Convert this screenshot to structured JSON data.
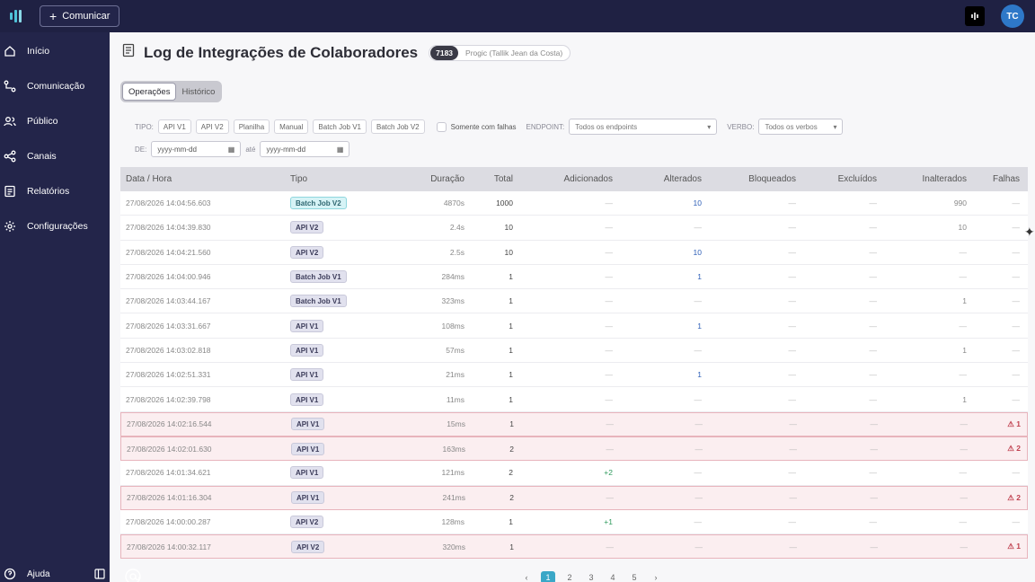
{
  "topbar": {
    "comunicar_label": "Comunicar",
    "avatar_initials": "TC"
  },
  "sidebar": {
    "items": [
      {
        "label": "Início",
        "icon": "home-icon"
      },
      {
        "label": "Comunicação",
        "icon": "flow-icon"
      },
      {
        "label": "Público",
        "icon": "users-icon"
      },
      {
        "label": "Canais",
        "icon": "share-icon"
      },
      {
        "label": "Relatórios",
        "icon": "report-icon"
      },
      {
        "label": "Configurações",
        "icon": "gear-icon"
      }
    ],
    "help_label": "Ajuda"
  },
  "header": {
    "title": "Log de Integrações de Colaboradores",
    "badge_count": "7183",
    "badge_text": "Progic (Tallik Jean da Costa)"
  },
  "tabs": [
    {
      "label": "Operações",
      "active": true
    },
    {
      "label": "Histórico",
      "active": false
    }
  ],
  "filters": {
    "tipo_label": "TIPO:",
    "tipo_chips": [
      "API V1",
      "API V2",
      "Planilha",
      "Manual",
      "Batch Job V1",
      "Batch Job V2"
    ],
    "only_failures_label": "Somente com falhas",
    "endpoint_label": "ENDPOINT:",
    "endpoint_value": "Todos os endpoints",
    "verbo_label": "VERBO:",
    "verbo_value": "Todos os verbos",
    "de_label": "DE:",
    "ate_label": "até",
    "date_placeholder": "yyyy-mm-dd"
  },
  "table": {
    "headers": [
      "Data / Hora",
      "Tipo",
      "Duração",
      "Total",
      "Adicionados",
      "Alterados",
      "Bloqueados",
      "Excluídos",
      "Inalterados",
      "Falhas"
    ],
    "rows": [
      {
        "date": "27/08/2026 14:04:56.603",
        "tipo": "Batch Job V2",
        "dur": "4870s",
        "total": "1000",
        "add": "—",
        "alt": "10",
        "blq": "—",
        "exc": "—",
        "ina": "990",
        "fal": "—",
        "err": false
      },
      {
        "date": "27/08/2026 14:04:39.830",
        "tipo": "API V2",
        "dur": "2.4s",
        "total": "10",
        "add": "—",
        "alt": "—",
        "blq": "—",
        "exc": "—",
        "ina": "10",
        "fal": "—",
        "err": false
      },
      {
        "date": "27/08/2026 14:04:21.560",
        "tipo": "API V2",
        "dur": "2.5s",
        "total": "10",
        "add": "—",
        "alt": "10",
        "blq": "—",
        "exc": "—",
        "ina": "—",
        "fal": "—",
        "err": false
      },
      {
        "date": "27/08/2026 14:04:00.946",
        "tipo": "Batch Job V1",
        "dur": "284ms",
        "total": "1",
        "add": "—",
        "alt": "1",
        "blq": "—",
        "exc": "—",
        "ina": "—",
        "fal": "—",
        "err": false
      },
      {
        "date": "27/08/2026 14:03:44.167",
        "tipo": "Batch Job V1",
        "dur": "323ms",
        "total": "1",
        "add": "—",
        "alt": "—",
        "blq": "—",
        "exc": "—",
        "ina": "1",
        "fal": "—",
        "err": false
      },
      {
        "date": "27/08/2026 14:03:31.667",
        "tipo": "API V1",
        "dur": "108ms",
        "total": "1",
        "add": "—",
        "alt": "1",
        "blq": "—",
        "exc": "—",
        "ina": "—",
        "fal": "—",
        "err": false
      },
      {
        "date": "27/08/2026 14:03:02.818",
        "tipo": "API V1",
        "dur": "57ms",
        "total": "1",
        "add": "—",
        "alt": "—",
        "blq": "—",
        "exc": "—",
        "ina": "1",
        "fal": "—",
        "err": false
      },
      {
        "date": "27/08/2026 14:02:51.331",
        "tipo": "API V1",
        "dur": "21ms",
        "total": "1",
        "add": "—",
        "alt": "1",
        "blq": "—",
        "exc": "—",
        "ina": "—",
        "fal": "—",
        "err": false
      },
      {
        "date": "27/08/2026 14:02:39.798",
        "tipo": "API V1",
        "dur": "11ms",
        "total": "1",
        "add": "—",
        "alt": "—",
        "blq": "—",
        "exc": "—",
        "ina": "1",
        "fal": "—",
        "err": false
      },
      {
        "date": "27/08/2026 14:02:16.544",
        "tipo": "API V1",
        "dur": "15ms",
        "total": "1",
        "add": "—",
        "alt": "—",
        "blq": "—",
        "exc": "—",
        "ina": "—",
        "fal": "⚠ 1",
        "err": true
      },
      {
        "date": "27/08/2026 14:02:01.630",
        "tipo": "API V1",
        "dur": "163ms",
        "total": "2",
        "add": "—",
        "alt": "—",
        "blq": "—",
        "exc": "—",
        "ina": "—",
        "fal": "⚠ 2",
        "err": true
      },
      {
        "date": "27/08/2026 14:01:34.621",
        "tipo": "API V1",
        "dur": "121ms",
        "total": "2",
        "add": "+2",
        "alt": "—",
        "blq": "—",
        "exc": "—",
        "ina": "—",
        "fal": "—",
        "err": false
      },
      {
        "date": "27/08/2026 14:01:16.304",
        "tipo": "API V1",
        "dur": "241ms",
        "total": "2",
        "add": "—",
        "alt": "—",
        "blq": "—",
        "exc": "—",
        "ina": "—",
        "fal": "⚠ 2",
        "err": true
      },
      {
        "date": "27/08/2026 14:00:00.287",
        "tipo": "API V2",
        "dur": "128ms",
        "total": "1",
        "add": "+1",
        "alt": "—",
        "blq": "—",
        "exc": "—",
        "ina": "—",
        "fal": "—",
        "err": false
      },
      {
        "date": "27/08/2026 14:00:32.117",
        "tipo": "API V2",
        "dur": "320ms",
        "total": "1",
        "add": "—",
        "alt": "—",
        "blq": "—",
        "exc": "—",
        "ina": "—",
        "fal": "⚠ 1",
        "err": true
      }
    ]
  },
  "pagination": {
    "prev": "‹",
    "pages": [
      "1",
      "2",
      "3",
      "4",
      "5"
    ],
    "current": "1",
    "next": "›"
  },
  "colors": {
    "nav_bg": "#23254a",
    "top_bg": "#1f2143",
    "accent": "#3aa7c7",
    "error_row": "#fbeef0",
    "fail_red": "#c0404f"
  }
}
